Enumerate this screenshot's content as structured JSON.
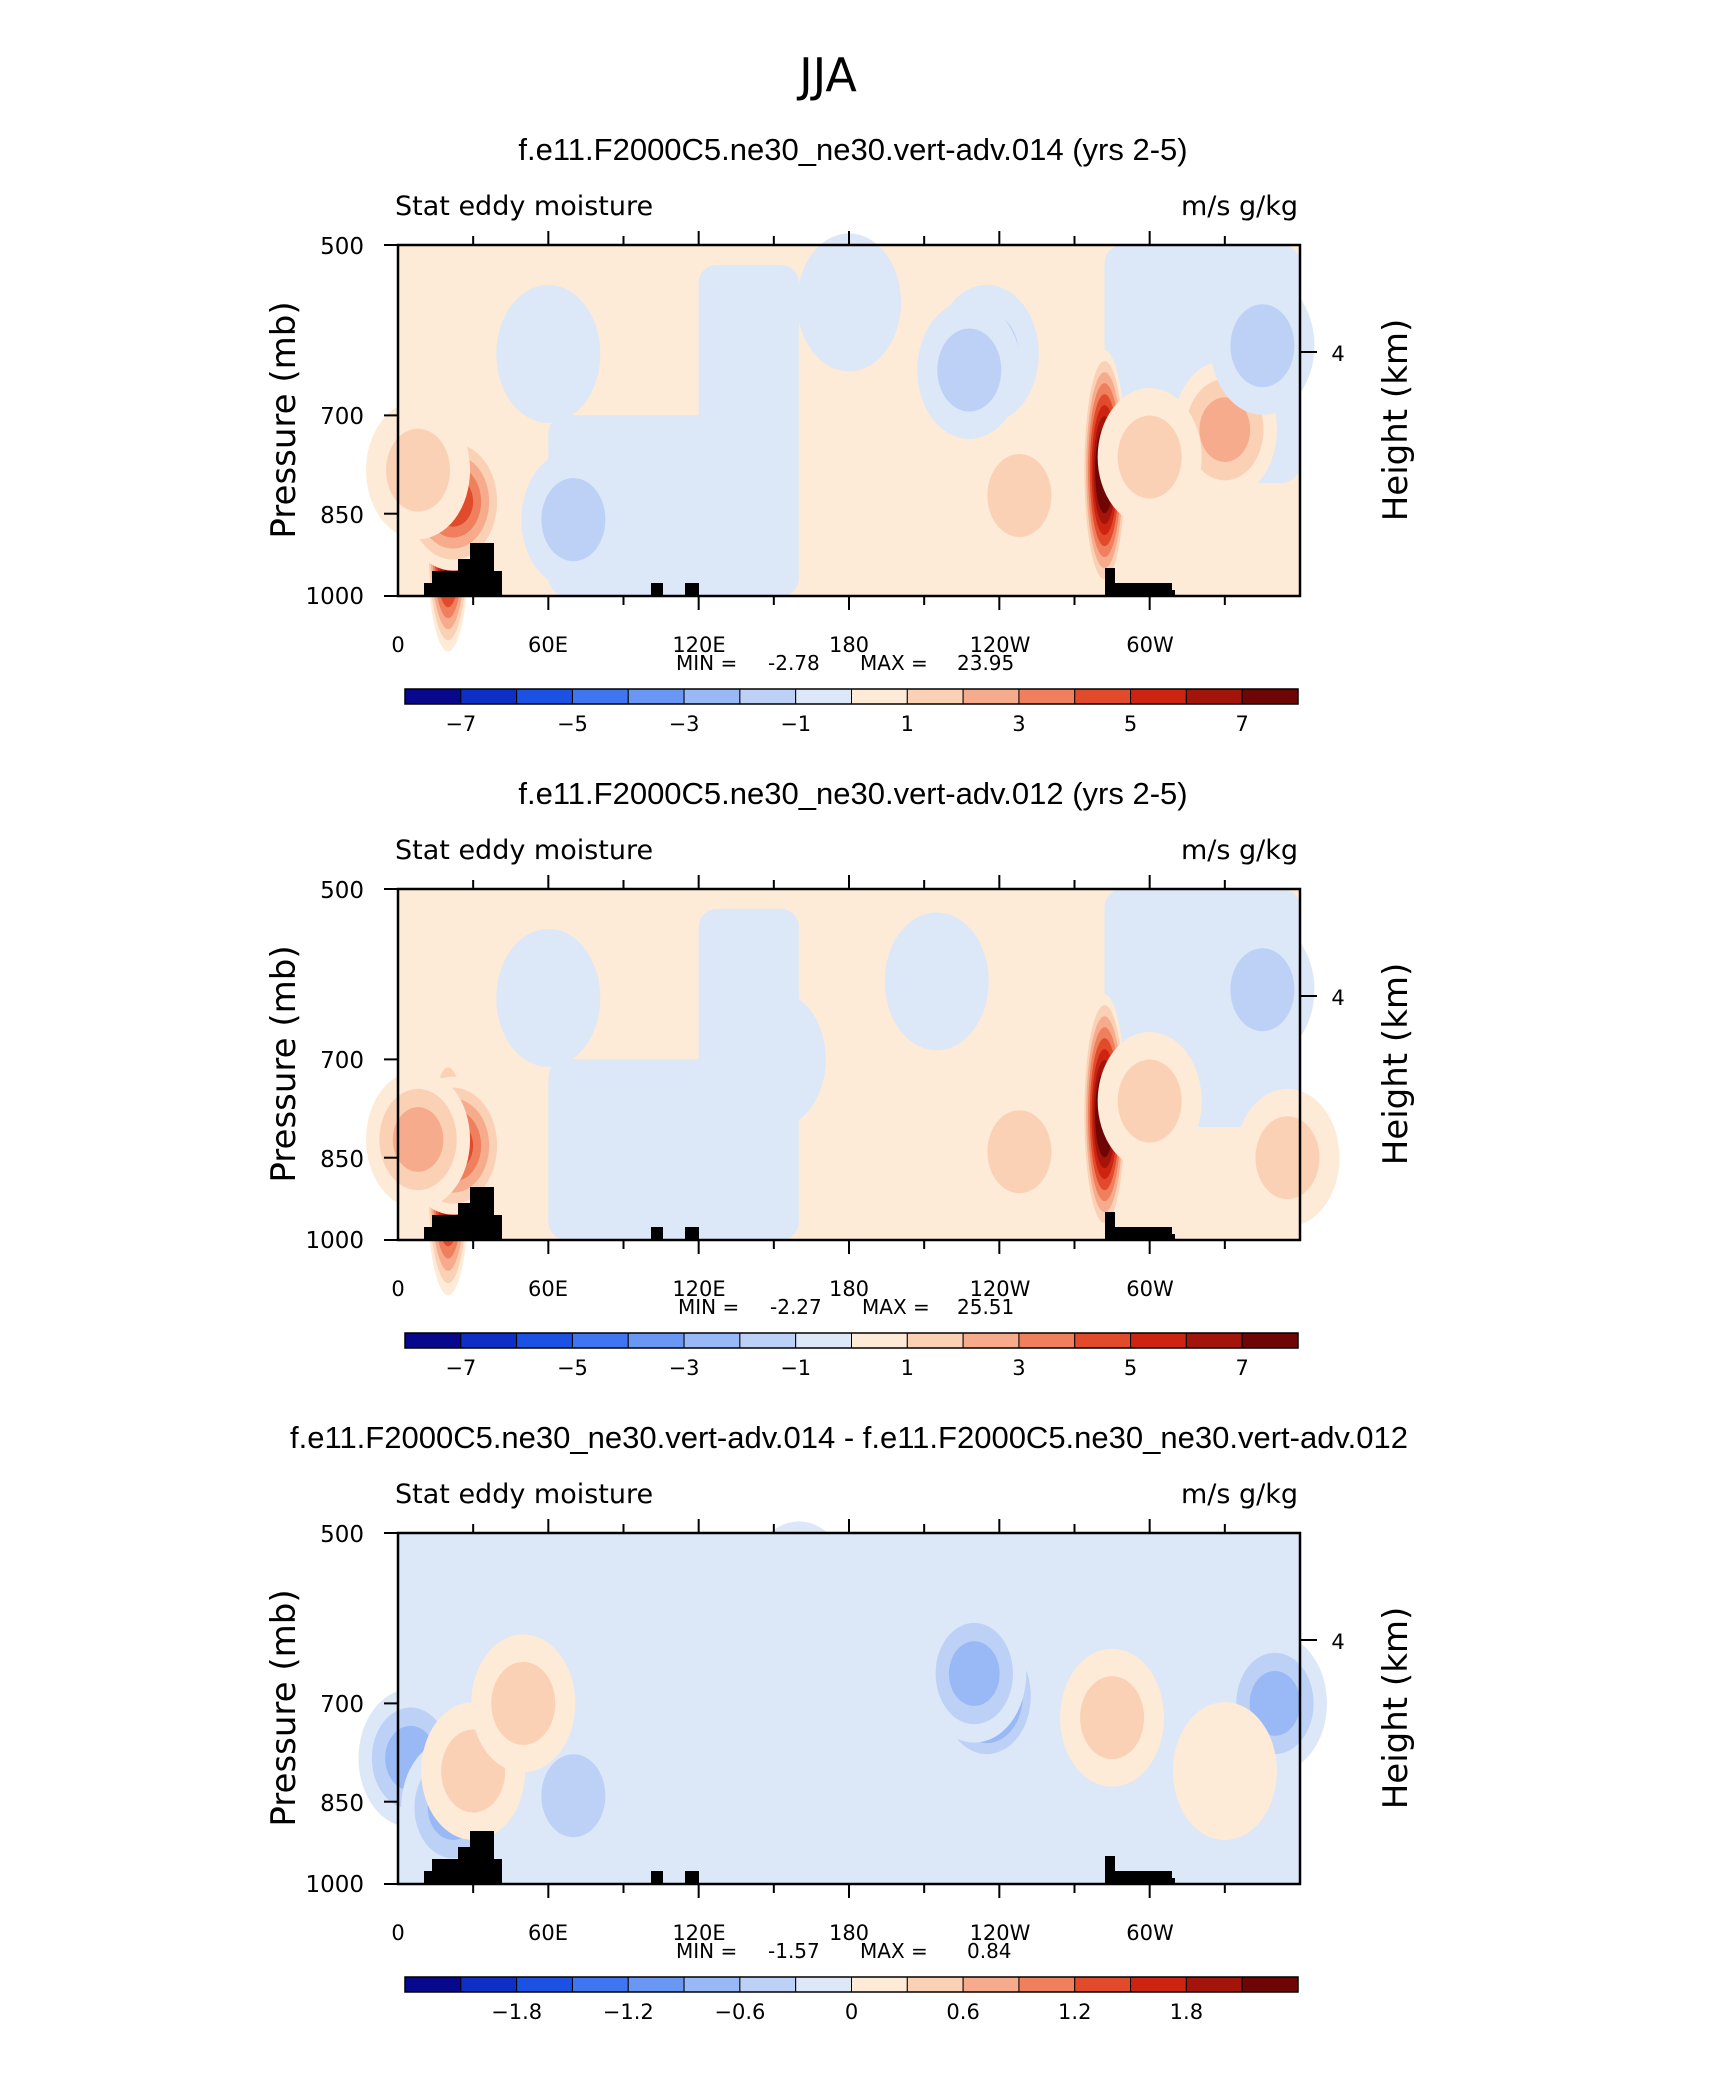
{
  "page_title": "JJA",
  "chart_data": [
    {
      "type": "heatmap",
      "title": "f.e11.F2000C5.ne30_ne30.vert-adv.014 (yrs 2-5)",
      "left_label": "Stat eddy moisture",
      "right_label": "m/s g/kg",
      "ylabel": "Pressure (mb)",
      "ylabel_right": "Height (km)",
      "y_ticks": [
        "500",
        "700",
        "850",
        "1000"
      ],
      "y_right_ticks": [
        "4"
      ],
      "x_ticks": [
        "0",
        "60E",
        "120E",
        "180",
        "120W",
        "60W"
      ],
      "min_label": "MIN =",
      "min_value": "-2.78",
      "max_label": "MAX =",
      "max_value": "23.95",
      "colorbar_labels": [
        "-7",
        "-5",
        "-3",
        "-1",
        "1",
        "3",
        "5",
        "7"
      ],
      "colorbar_levels": [
        -8,
        -7,
        -6,
        -5,
        -4,
        -3,
        -2,
        -1,
        0,
        1,
        2,
        3,
        4,
        5,
        6,
        7,
        8
      ],
      "features": [
        {
          "lon": 20,
          "p": 880,
          "value": 9.5
        },
        {
          "lon": 22,
          "p": 830,
          "value": 5
        },
        {
          "lon": 8,
          "p": 780,
          "value": 1.5
        },
        {
          "lon": 330,
          "p": 720,
          "value": 3
        },
        {
          "lon": 248,
          "p": 820,
          "value": 2.2
        },
        {
          "lon": 282,
          "p": 780,
          "value": 9.5
        },
        {
          "lon": 300,
          "p": 760,
          "value": 1.5
        },
        {
          "lon": 235,
          "p": 620,
          "value": -2.4
        },
        {
          "lon": 228,
          "p": 640,
          "value": -1.6
        },
        {
          "lon": 345,
          "p": 610,
          "value": -2.2
        },
        {
          "lon": 120,
          "p": 850,
          "value": -1.2
        },
        {
          "lon": 70,
          "p": 860,
          "value": -1.8
        },
        {
          "lon": 60,
          "p": 620,
          "value": -1.2
        },
        {
          "lon": 180,
          "p": 560,
          "value": -1.1
        }
      ]
    },
    {
      "type": "heatmap",
      "title": "f.e11.F2000C5.ne30_ne30.vert-adv.012 (yrs 2-5)",
      "left_label": "Stat eddy moisture",
      "right_label": "m/s g/kg",
      "ylabel": "Pressure (mb)",
      "ylabel_right": "Height (km)",
      "y_ticks": [
        "500",
        "700",
        "850",
        "1000"
      ],
      "y_right_ticks": [
        "4"
      ],
      "x_ticks": [
        "0",
        "60E",
        "120E",
        "180",
        "120W",
        "60W"
      ],
      "min_label": "MIN =",
      "min_value": "-2.27",
      "max_label": "MAX =",
      "max_value": "25.51",
      "colorbar_labels": [
        "-7",
        "-5",
        "-3",
        "-1",
        "1",
        "3",
        "5",
        "7"
      ],
      "colorbar_levels": [
        -8,
        -7,
        -6,
        -5,
        -4,
        -3,
        -2,
        -1,
        0,
        1,
        2,
        3,
        4,
        5,
        6,
        7,
        8
      ],
      "features": [
        {
          "lon": 20,
          "p": 880,
          "value": 9
        },
        {
          "lon": 22,
          "p": 830,
          "value": 5
        },
        {
          "lon": 8,
          "p": 820,
          "value": 2.5
        },
        {
          "lon": 248,
          "p": 840,
          "value": 2
        },
        {
          "lon": 282,
          "p": 780,
          "value": 10
        },
        {
          "lon": 300,
          "p": 760,
          "value": 1.5
        },
        {
          "lon": 355,
          "p": 850,
          "value": 2.2
        },
        {
          "lon": 215,
          "p": 600,
          "value": -1.4
        },
        {
          "lon": 345,
          "p": 610,
          "value": -2
        },
        {
          "lon": 120,
          "p": 850,
          "value": -1.2
        },
        {
          "lon": 60,
          "p": 620,
          "value": -1.2
        },
        {
          "lon": 150,
          "p": 700,
          "value": -1.1
        }
      ]
    },
    {
      "type": "heatmap",
      "title": "f.e11.F2000C5.ne30_ne30.vert-adv.014 - f.e11.F2000C5.ne30_ne30.vert-adv.012",
      "left_label": "Stat eddy moisture",
      "right_label": "m/s g/kg",
      "ylabel": "Pressure (mb)",
      "ylabel_right": "Height (km)",
      "y_ticks": [
        "500",
        "700",
        "850",
        "1000"
      ],
      "y_right_ticks": [
        "4"
      ],
      "x_ticks": [
        "0",
        "60E",
        "120E",
        "180",
        "120W",
        "60W"
      ],
      "min_label": "MIN =",
      "min_value": "-1.57",
      "max_label": "MAX =",
      "max_value": "0.84",
      "colorbar_labels": [
        "-1.8",
        "-1.2",
        "-0.6",
        "0",
        "0.6",
        "1.2",
        "1.8"
      ],
      "colorbar_levels": [
        -2.4,
        -2.1,
        -1.8,
        -1.5,
        -1.2,
        -0.9,
        -0.6,
        -0.3,
        0,
        0.3,
        0.6,
        0.9,
        1.2,
        1.5,
        1.8,
        2.1,
        2.4
      ],
      "features": [
        {
          "lon": 235,
          "p": 690,
          "value": -1.6
        },
        {
          "lon": 230,
          "p": 660,
          "value": -1.0
        },
        {
          "lon": 5,
          "p": 780,
          "value": -0.9
        },
        {
          "lon": 22,
          "p": 860,
          "value": -1.0
        },
        {
          "lon": 70,
          "p": 840,
          "value": -0.7
        },
        {
          "lon": 350,
          "p": 700,
          "value": -1.0
        },
        {
          "lon": 30,
          "p": 800,
          "value": 0.6
        },
        {
          "lon": 50,
          "p": 700,
          "value": 0.5
        },
        {
          "lon": 285,
          "p": 720,
          "value": 0.5
        },
        {
          "lon": 330,
          "p": 800,
          "value": 0.4
        },
        {
          "lon": 160,
          "p": 560,
          "value": -0.3
        }
      ]
    }
  ],
  "colors": {
    "palette": [
      "#08088C",
      "#0D2FC6",
      "#1C52E4",
      "#3F75F1",
      "#6A97F4",
      "#98B8F6",
      "#BDD1F7",
      "#DCE7F8",
      "#FDEBD8",
      "#FBD1B5",
      "#F6AC8C",
      "#EF7F5D",
      "#E24A2C",
      "#CC2410",
      "#A3140B",
      "#6F0606"
    ],
    "topography": "#000000"
  }
}
